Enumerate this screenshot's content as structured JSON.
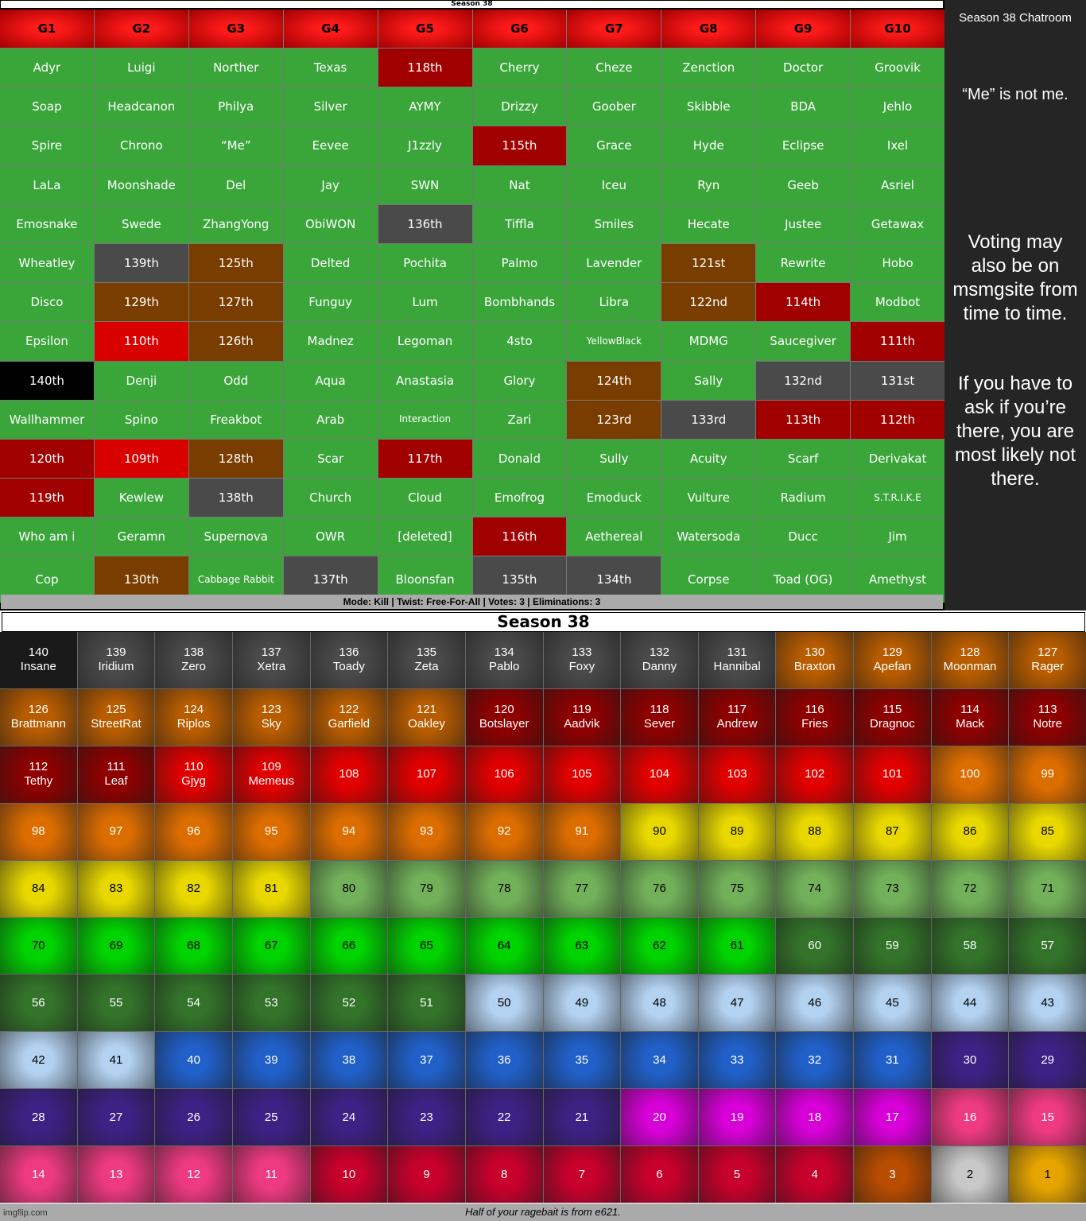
{
  "top_banner": "Season 38",
  "top_table": {
    "headers": [
      "G1",
      "G2",
      "G3",
      "G4",
      "G5",
      "G6",
      "G7",
      "G8",
      "G9",
      "G10"
    ],
    "rows": [
      [
        {
          "text": "Adyr",
          "color": "#3aa63a"
        },
        {
          "text": "Luigi",
          "color": "#3aa63a"
        },
        {
          "text": "Norther",
          "color": "#3aa63a"
        },
        {
          "text": "Texas",
          "color": "#3aa63a"
        },
        {
          "text": "118th",
          "color": "#a00000"
        },
        {
          "text": "Cherry",
          "color": "#3aa63a"
        },
        {
          "text": "Cheze",
          "color": "#3aa63a"
        },
        {
          "text": "Zenction",
          "color": "#3aa63a"
        },
        {
          "text": "Doctor",
          "color": "#3aa63a"
        },
        {
          "text": "Groovik",
          "color": "#3aa63a"
        }
      ],
      [
        {
          "text": "Soap",
          "color": "#3aa63a"
        },
        {
          "text": "Headcanon",
          "color": "#3aa63a"
        },
        {
          "text": "Philya",
          "color": "#3aa63a"
        },
        {
          "text": "Silver",
          "color": "#3aa63a"
        },
        {
          "text": "AYMY",
          "color": "#3aa63a"
        },
        {
          "text": "Drizzy",
          "color": "#3aa63a"
        },
        {
          "text": "Goober",
          "color": "#3aa63a"
        },
        {
          "text": "Skibble",
          "color": "#3aa63a"
        },
        {
          "text": "BDA",
          "color": "#3aa63a"
        },
        {
          "text": "Jehlo",
          "color": "#3aa63a"
        }
      ],
      [
        {
          "text": "Spire",
          "color": "#3aa63a"
        },
        {
          "text": "Chrono",
          "color": "#3aa63a"
        },
        {
          "text": "“Me”",
          "color": "#3aa63a"
        },
        {
          "text": "Eevee",
          "color": "#3aa63a"
        },
        {
          "text": "J1zzly",
          "color": "#3aa63a"
        },
        {
          "text": "115th",
          "color": "#a00000"
        },
        {
          "text": "Grace",
          "color": "#3aa63a"
        },
        {
          "text": "Hyde",
          "color": "#3aa63a"
        },
        {
          "text": "Eclipse",
          "color": "#3aa63a"
        },
        {
          "text": "Ixel",
          "color": "#3aa63a"
        }
      ],
      [
        {
          "text": "LaLa",
          "color": "#3aa63a"
        },
        {
          "text": "Moonshade",
          "color": "#3aa63a"
        },
        {
          "text": "Del",
          "color": "#3aa63a"
        },
        {
          "text": "Jay",
          "color": "#3aa63a"
        },
        {
          "text": "SWN",
          "color": "#3aa63a"
        },
        {
          "text": "Nat",
          "color": "#3aa63a"
        },
        {
          "text": "Iceu",
          "color": "#3aa63a"
        },
        {
          "text": "Ryn",
          "color": "#3aa63a"
        },
        {
          "text": "Geeb",
          "color": "#3aa63a"
        },
        {
          "text": "Asriel",
          "color": "#3aa63a"
        }
      ],
      [
        {
          "text": "Emosnake",
          "color": "#3aa63a"
        },
        {
          "text": "Swede",
          "color": "#3aa63a"
        },
        {
          "text": "ZhangYong",
          "color": "#3aa63a"
        },
        {
          "text": "ObiWON",
          "color": "#3aa63a"
        },
        {
          "text": "136th",
          "color": "#4a4a4a"
        },
        {
          "text": "Tiffla",
          "color": "#3aa63a"
        },
        {
          "text": "Smiles",
          "color": "#3aa63a"
        },
        {
          "text": "Hecate",
          "color": "#3aa63a"
        },
        {
          "text": "Justee",
          "color": "#3aa63a"
        },
        {
          "text": "Getawax",
          "color": "#3aa63a"
        }
      ],
      [
        {
          "text": "Wheatley",
          "color": "#3aa63a"
        },
        {
          "text": "139th",
          "color": "#4a4a4a"
        },
        {
          "text": "125th",
          "color": "#7a3d00"
        },
        {
          "text": "Delted",
          "color": "#3aa63a"
        },
        {
          "text": "Pochita",
          "color": "#3aa63a"
        },
        {
          "text": "Palmo",
          "color": "#3aa63a"
        },
        {
          "text": "Lavender",
          "color": "#3aa63a"
        },
        {
          "text": "121st",
          "color": "#7a3d00"
        },
        {
          "text": "Rewrite",
          "color": "#3aa63a"
        },
        {
          "text": "Hobo",
          "color": "#3aa63a"
        }
      ],
      [
        {
          "text": "Disco",
          "color": "#3aa63a"
        },
        {
          "text": "129th",
          "color": "#7a3d00"
        },
        {
          "text": "127th",
          "color": "#7a3d00"
        },
        {
          "text": "Funguy",
          "color": "#3aa63a"
        },
        {
          "text": "Lum",
          "color": "#3aa63a"
        },
        {
          "text": "Bombhands",
          "color": "#3aa63a"
        },
        {
          "text": "Libra",
          "color": "#3aa63a"
        },
        {
          "text": "122nd",
          "color": "#7a3d00"
        },
        {
          "text": "114th",
          "color": "#a00000"
        },
        {
          "text": "Modbot",
          "color": "#3aa63a"
        }
      ],
      [
        {
          "text": "Epsilon",
          "color": "#3aa63a"
        },
        {
          "text": "110th",
          "color": "#d90000"
        },
        {
          "text": "126th",
          "color": "#7a3d00"
        },
        {
          "text": "Madnez",
          "color": "#3aa63a"
        },
        {
          "text": "Legoman",
          "color": "#3aa63a"
        },
        {
          "text": "4sto",
          "color": "#3aa63a"
        },
        {
          "text": "YellowBlack",
          "color": "#3aa63a"
        },
        {
          "text": "MDMG",
          "color": "#3aa63a"
        },
        {
          "text": "Saucegiver",
          "color": "#3aa63a"
        },
        {
          "text": "111th",
          "color": "#a00000"
        }
      ],
      [
        {
          "text": "140th",
          "color": "#000000"
        },
        {
          "text": "Denji",
          "color": "#3aa63a"
        },
        {
          "text": "Odd",
          "color": "#3aa63a"
        },
        {
          "text": "Aqua",
          "color": "#3aa63a"
        },
        {
          "text": "Anastasia",
          "color": "#3aa63a"
        },
        {
          "text": "Glory",
          "color": "#3aa63a"
        },
        {
          "text": "124th",
          "color": "#7a3d00"
        },
        {
          "text": "Sally",
          "color": "#3aa63a"
        },
        {
          "text": "132nd",
          "color": "#4a4a4a"
        },
        {
          "text": "131st",
          "color": "#4a4a4a"
        }
      ],
      [
        {
          "text": "Wallhammer",
          "color": "#3aa63a"
        },
        {
          "text": "Spino",
          "color": "#3aa63a"
        },
        {
          "text": "Freakbot",
          "color": "#3aa63a"
        },
        {
          "text": "Arab",
          "color": "#3aa63a"
        },
        {
          "text": "Interaction",
          "color": "#3aa63a"
        },
        {
          "text": "Zari",
          "color": "#3aa63a"
        },
        {
          "text": "123rd",
          "color": "#7a3d00"
        },
        {
          "text": "133rd",
          "color": "#4a4a4a"
        },
        {
          "text": "113th",
          "color": "#a00000"
        },
        {
          "text": "112th",
          "color": "#a00000"
        }
      ],
      [
        {
          "text": "120th",
          "color": "#a00000"
        },
        {
          "text": "109th",
          "color": "#d90000"
        },
        {
          "text": "128th",
          "color": "#7a3d00"
        },
        {
          "text": "Scar",
          "color": "#3aa63a"
        },
        {
          "text": "117th",
          "color": "#a00000"
        },
        {
          "text": "Donald",
          "color": "#3aa63a"
        },
        {
          "text": "Sully",
          "color": "#3aa63a"
        },
        {
          "text": "Acuity",
          "color": "#3aa63a"
        },
        {
          "text": "Scarf",
          "color": "#3aa63a"
        },
        {
          "text": "Derivakat",
          "color": "#3aa63a"
        }
      ],
      [
        {
          "text": "119th",
          "color": "#a00000"
        },
        {
          "text": "Kewlew",
          "color": "#3aa63a"
        },
        {
          "text": "138th",
          "color": "#4a4a4a"
        },
        {
          "text": "Church",
          "color": "#3aa63a"
        },
        {
          "text": "Cloud",
          "color": "#3aa63a"
        },
        {
          "text": "Emofrog",
          "color": "#3aa63a"
        },
        {
          "text": "Emoduck",
          "color": "#3aa63a"
        },
        {
          "text": "Vulture",
          "color": "#3aa63a"
        },
        {
          "text": "Radium",
          "color": "#3aa63a"
        },
        {
          "text": "S.T.R.I.K.E",
          "color": "#3aa63a"
        }
      ],
      [
        {
          "text": "Who am i",
          "color": "#3aa63a"
        },
        {
          "text": "Geramn",
          "color": "#3aa63a"
        },
        {
          "text": "Supernova",
          "color": "#3aa63a"
        },
        {
          "text": "OWR",
          "color": "#3aa63a"
        },
        {
          "text": "[deleted]",
          "color": "#3aa63a"
        },
        {
          "text": "116th",
          "color": "#a00000"
        },
        {
          "text": "Aethereal",
          "color": "#3aa63a"
        },
        {
          "text": "Watersoda",
          "color": "#3aa63a"
        },
        {
          "text": "Ducc",
          "color": "#3aa63a"
        },
        {
          "text": "Jim",
          "color": "#3aa63a"
        }
      ],
      [
        {
          "text": "Cop",
          "color": "#3aa63a"
        },
        {
          "text": "130th",
          "color": "#7a3d00"
        },
        {
          "text": "Cabbage Rabbit",
          "color": "#3aa63a"
        },
        {
          "text": "137th",
          "color": "#4a4a4a"
        },
        {
          "text": "Bloonsfan",
          "color": "#3aa63a"
        },
        {
          "text": "135th",
          "color": "#4a4a4a"
        },
        {
          "text": "134th",
          "color": "#4a4a4a"
        },
        {
          "text": "Corpse",
          "color": "#3aa63a"
        },
        {
          "text": "Toad (OG)",
          "color": "#3aa63a"
        },
        {
          "text": "Amethyst",
          "color": "#3aa63a"
        }
      ]
    ]
  },
  "mode_bar": "Mode: Kill | Twist: Free-For-All | Votes: 3 | Eliminations: 3",
  "side_panel": {
    "title": "Season 38 Chatroom",
    "note": "“Me” is not me.",
    "text1": "Voting may also be on msmgsite from time to time.",
    "text2": "If you have to ask if you’re there, you are most likely not there."
  },
  "bottom_title": "Season 38",
  "tiers": [
    {
      "color": "#1a1a1a",
      "cells": [
        {
          "rank": 140,
          "name": "Insane"
        }
      ]
    },
    {
      "color": "#4a4a4a",
      "cells": [
        {
          "rank": 139,
          "name": "Iridium"
        },
        {
          "rank": 138,
          "name": "Zero"
        },
        {
          "rank": 137,
          "name": "Xetra"
        },
        {
          "rank": 136,
          "name": "Toady"
        },
        {
          "rank": 135,
          "name": "Zeta"
        },
        {
          "rank": 134,
          "name": "Pablo"
        },
        {
          "rank": 133,
          "name": "Foxy"
        },
        {
          "rank": 132,
          "name": "Danny"
        },
        {
          "rank": 131,
          "name": "Hannibal"
        }
      ]
    },
    {
      "color": "#b85c00",
      "cells": [
        {
          "rank": 130,
          "name": "Braxton"
        },
        {
          "rank": 129,
          "name": "Apefan"
        },
        {
          "rank": 128,
          "name": "Moonman"
        },
        {
          "rank": 127,
          "name": "Rager"
        },
        {
          "rank": 126,
          "name": "Brattmann"
        },
        {
          "rank": 125,
          "name": "StreetRat"
        },
        {
          "rank": 124,
          "name": "Riplos"
        },
        {
          "rank": 123,
          "name": "Sky"
        },
        {
          "rank": 122,
          "name": "Garfield"
        },
        {
          "rank": 121,
          "name": "Oakley"
        }
      ]
    },
    {
      "color": "#8e0000",
      "cells": [
        {
          "rank": 120,
          "name": "Botslayer"
        },
        {
          "rank": 119,
          "name": "Aadvik"
        },
        {
          "rank": 118,
          "name": "Sever"
        },
        {
          "rank": 117,
          "name": "Andrew"
        },
        {
          "rank": 116,
          "name": "Fries"
        },
        {
          "rank": 115,
          "name": "Dragnoc"
        },
        {
          "rank": 114,
          "name": "Mack"
        },
        {
          "rank": 113,
          "name": "Notre"
        },
        {
          "rank": 112,
          "name": "Tethy"
        },
        {
          "rank": 111,
          "name": "Leaf"
        }
      ]
    },
    {
      "color": "#e00000",
      "cells": [
        {
          "rank": 110,
          "name": "Gjyg"
        },
        {
          "rank": 109,
          "name": "Memeus"
        },
        {
          "rank": 108
        },
        {
          "rank": 107
        },
        {
          "rank": 106
        },
        {
          "rank": 105
        },
        {
          "rank": 104
        },
        {
          "rank": 103
        },
        {
          "rank": 102
        },
        {
          "rank": 101
        }
      ]
    },
    {
      "color": "#dc6d00",
      "cells": [
        {
          "rank": 100
        },
        {
          "rank": 99
        },
        {
          "rank": 98
        },
        {
          "rank": 97
        },
        {
          "rank": 96
        },
        {
          "rank": 95
        },
        {
          "rank": 94
        },
        {
          "rank": 93
        },
        {
          "rank": 92
        },
        {
          "rank": 91
        }
      ]
    },
    {
      "color": "#e8d800",
      "cells": [
        {
          "rank": 90
        },
        {
          "rank": 89
        },
        {
          "rank": 88
        },
        {
          "rank": 87
        },
        {
          "rank": 86
        },
        {
          "rank": 85
        },
        {
          "rank": 84
        },
        {
          "rank": 83
        },
        {
          "rank": 82
        },
        {
          "rank": 81
        }
      ]
    },
    {
      "color": "#72b15a",
      "cells": [
        {
          "rank": 80
        },
        {
          "rank": 79
        },
        {
          "rank": 78
        },
        {
          "rank": 77
        },
        {
          "rank": 76
        },
        {
          "rank": 75
        },
        {
          "rank": 74
        },
        {
          "rank": 73
        },
        {
          "rank": 72
        },
        {
          "rank": 71
        }
      ]
    },
    {
      "color": "#00d400",
      "cells": [
        {
          "rank": 70
        },
        {
          "rank": 69
        },
        {
          "rank": 68
        },
        {
          "rank": 67
        },
        {
          "rank": 66
        },
        {
          "rank": 65
        },
        {
          "rank": 64
        },
        {
          "rank": 63
        },
        {
          "rank": 62
        },
        {
          "rank": 61
        }
      ]
    },
    {
      "color": "#33742a",
      "cells": [
        {
          "rank": 60
        },
        {
          "rank": 59
        },
        {
          "rank": 58
        },
        {
          "rank": 57
        },
        {
          "rank": 56
        },
        {
          "rank": 55
        },
        {
          "rank": 54
        },
        {
          "rank": 53
        },
        {
          "rank": 52
        },
        {
          "rank": 51
        }
      ]
    },
    {
      "color": "#b3d1f0",
      "cells": [
        {
          "rank": 50
        },
        {
          "rank": 49
        },
        {
          "rank": 48
        },
        {
          "rank": 47
        },
        {
          "rank": 46
        },
        {
          "rank": 45
        },
        {
          "rank": 44
        },
        {
          "rank": 43
        },
        {
          "rank": 42
        },
        {
          "rank": 41
        }
      ]
    },
    {
      "color": "#2160c8",
      "cells": [
        {
          "rank": 40
        },
        {
          "rank": 39
        },
        {
          "rank": 38
        },
        {
          "rank": 37
        },
        {
          "rank": 36
        },
        {
          "rank": 35
        },
        {
          "rank": 34
        },
        {
          "rank": 33
        },
        {
          "rank": 32
        },
        {
          "rank": 31
        }
      ]
    },
    {
      "color": "#3e2185",
      "cells": [
        {
          "rank": 30
        },
        {
          "rank": 29
        },
        {
          "rank": 28
        },
        {
          "rank": 27
        },
        {
          "rank": 26
        },
        {
          "rank": 25
        },
        {
          "rank": 24
        },
        {
          "rank": 23
        },
        {
          "rank": 22
        },
        {
          "rank": 21
        }
      ]
    },
    {
      "color": "#d800d8",
      "cells": [
        {
          "rank": 20
        },
        {
          "rank": 19
        },
        {
          "rank": 18
        },
        {
          "rank": 17
        }
      ]
    },
    {
      "color": "#ee3a80",
      "cells": [
        {
          "rank": 16
        },
        {
          "rank": 15
        },
        {
          "rank": 14
        },
        {
          "rank": 13
        },
        {
          "rank": 12
        },
        {
          "rank": 11
        }
      ]
    },
    {
      "color": "#c8002c",
      "cells": [
        {
          "rank": 10
        },
        {
          "rank": 9
        },
        {
          "rank": 8
        },
        {
          "rank": 7
        },
        {
          "rank": 6
        },
        {
          "rank": 5
        },
        {
          "rank": 4
        }
      ]
    },
    {
      "color": "#b84c00",
      "cells": [
        {
          "rank": 3
        }
      ]
    },
    {
      "color": "#c8c8c8",
      "cells": [
        {
          "rank": 2
        }
      ]
    },
    {
      "color": "#e6a400",
      "cells": [
        {
          "rank": 1
        }
      ]
    }
  ],
  "footer": "Half of your ragebait is from e621.",
  "watermark": "imgflip.com"
}
